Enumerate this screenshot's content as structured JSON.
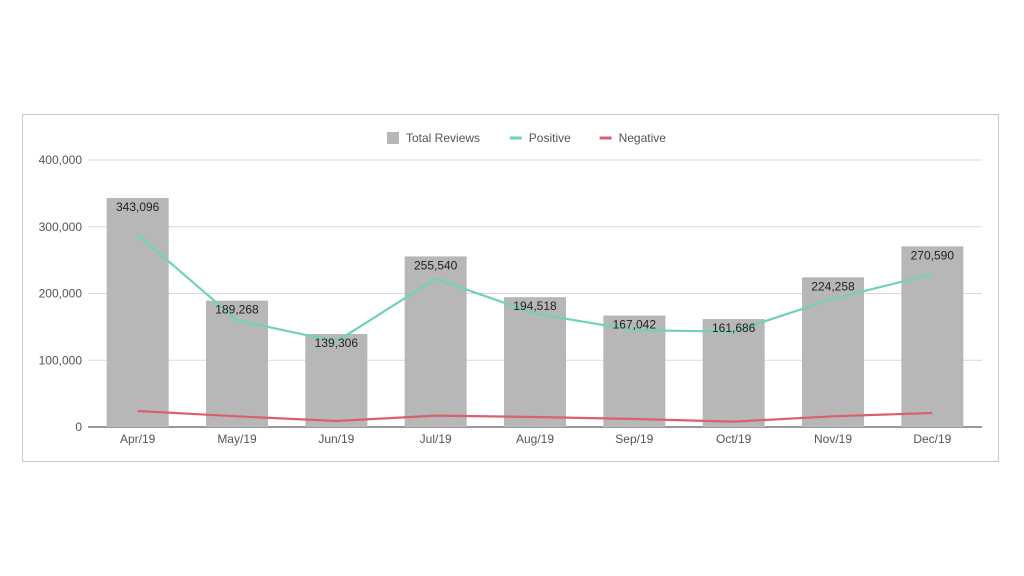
{
  "chart_data": {
    "type": "bar",
    "categories": [
      "Apr/19",
      "May/19",
      "Jun/19",
      "Jul/19",
      "Aug/19",
      "Sep/19",
      "Oct/19",
      "Nov/19",
      "Dec/19"
    ],
    "series": [
      {
        "name": "Total Reviews",
        "type": "bar",
        "color": "#b7b7b7",
        "values": [
          343096,
          189268,
          139306,
          255540,
          194518,
          167042,
          161686,
          224258,
          270590
        ],
        "labels": [
          "343,096",
          "189,268",
          "139,306",
          "255,540",
          "194,518",
          "167,042",
          "161,686",
          "224,258",
          "270,590"
        ]
      },
      {
        "name": "Positive",
        "type": "line",
        "color": "#6fd5ad",
        "values": [
          288000,
          160000,
          128000,
          222000,
          170000,
          145000,
          143000,
          192000,
          229000
        ]
      },
      {
        "name": "Negative",
        "type": "line",
        "color": "#d9606e",
        "values": [
          24000,
          16000,
          9000,
          17000,
          15000,
          12000,
          8000,
          16000,
          21000
        ]
      }
    ],
    "ylim": [
      0,
      400000
    ],
    "yticks": [
      0,
      100000,
      200000,
      300000,
      400000
    ],
    "ytick_labels": [
      "0",
      "100,000",
      "200,000",
      "300,000",
      "400,000"
    ],
    "grid": true,
    "legend_position": "top-center"
  }
}
